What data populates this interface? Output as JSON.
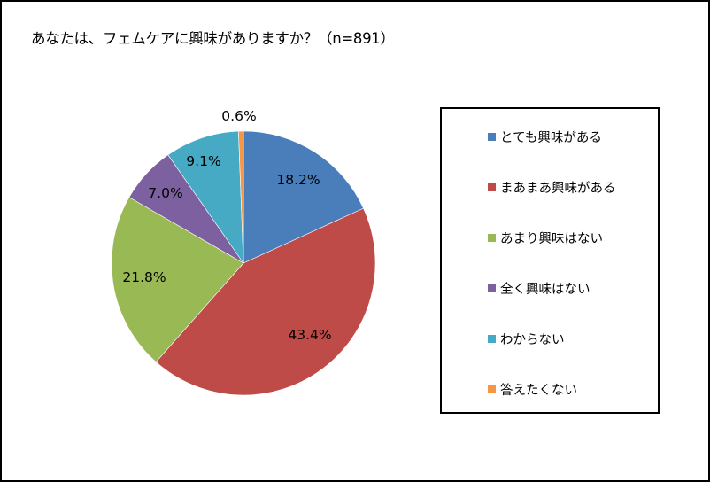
{
  "chart_data": {
    "type": "pie",
    "title": "あなたは、フェムケアに興味がありますか？（n=891）",
    "categories": [
      "とても興味がある",
      "まあまあ興味がある",
      "あまり興味はない",
      "全く興味はない",
      "わからない",
      "答えたくない"
    ],
    "values": [
      18.2,
      43.4,
      21.8,
      7.0,
      9.1,
      0.6
    ],
    "labels": [
      "18.2%",
      "43.4%",
      "21.8%",
      "7.0%",
      "9.1%",
      "0.6%"
    ],
    "colors": [
      "#4A7EBB",
      "#BE4B48",
      "#98B954",
      "#7D60A0",
      "#46AAC5",
      "#F79646"
    ],
    "start_angle_deg": 0,
    "direction": "clockwise",
    "legend_position": "right",
    "n": 891
  },
  "title": "あなたは、フェムケアに興味がありますか？（n=891）",
  "legend": {
    "items": [
      {
        "label": "とても興味がある",
        "color": "#4A7EBB"
      },
      {
        "label": "まあまあ興味がある",
        "color": "#BE4B48"
      },
      {
        "label": "あまり興味はない",
        "color": "#98B954"
      },
      {
        "label": "全く興味はない",
        "color": "#7D60A0"
      },
      {
        "label": "わからない",
        "color": "#46AAC5"
      },
      {
        "label": "答えたくない",
        "color": "#F79646"
      }
    ]
  }
}
